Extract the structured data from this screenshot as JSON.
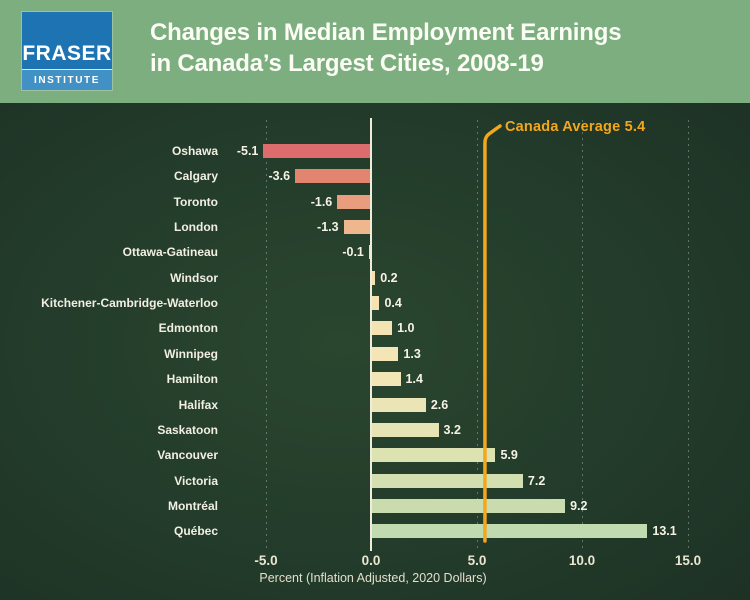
{
  "header": {
    "logo_line1": "FRASER",
    "logo_line2": "INSTITUTE",
    "title_line1": "Changes in Median Employment Earnings",
    "title_line2": "in Canada’s Largest Cities, 2008-19",
    "header_bg_color": "#7cae80",
    "logo_blue": "#1e73b2",
    "logo_band_blue": "#4191c5"
  },
  "chart_data": {
    "type": "bar",
    "orientation": "horizontal",
    "title": "Changes in Median Employment Earnings in Canada’s Largest Cities, 2008-19",
    "categories": [
      "Oshawa",
      "Calgary",
      "Toronto",
      "London",
      "Ottawa-Gatineau",
      "Windsor",
      "Kitchener-Cambridge-Waterloo",
      "Edmonton",
      "Winnipeg",
      "Hamilton",
      "Halifax",
      "Saskatoon",
      "Vancouver",
      "Victoria",
      "Montréal",
      "Québec"
    ],
    "values": [
      -5.1,
      -3.6,
      -1.6,
      -1.3,
      -0.1,
      0.2,
      0.4,
      1.0,
      1.3,
      1.4,
      2.6,
      3.2,
      5.9,
      7.2,
      9.2,
      13.1
    ],
    "value_labels": [
      "-5.1",
      "-3.6",
      "-1.6",
      "-1.3",
      "-0.1",
      "0.2",
      "0.4",
      "1.0",
      "1.3",
      "1.4",
      "2.6",
      "3.2",
      "5.9",
      "7.2",
      "9.2",
      "13.1"
    ],
    "bar_colors": [
      "#dd6d6d",
      "#e28570",
      "#e99c7e",
      "#efb78d",
      "#f3dcab",
      "#f4e0b0",
      "#f4e2b2",
      "#f4e4b4",
      "#f3e5b5",
      "#f2e5b6",
      "#ebe4b6",
      "#e6e3b4",
      "#dce2b0",
      "#d3dfb1",
      "#cadcae",
      "#c1daaf"
    ],
    "xlabel": "Percent (Inflation Adjusted, 2020 Dollars)",
    "x_ticks": [
      "-5.0",
      "0.0",
      "5.0",
      "10.0",
      "15.0"
    ],
    "x_tick_values": [
      -5,
      0,
      5,
      10,
      15
    ],
    "xlim": [
      -5.5,
      15.5
    ],
    "grid": "dashed vertical",
    "gridlines_at": [
      -5,
      5,
      10,
      15
    ],
    "background_color": "#223a2a",
    "annotation": {
      "label": "Canada Average 5.4",
      "value": 5.4,
      "color": "#f2a71d"
    }
  }
}
